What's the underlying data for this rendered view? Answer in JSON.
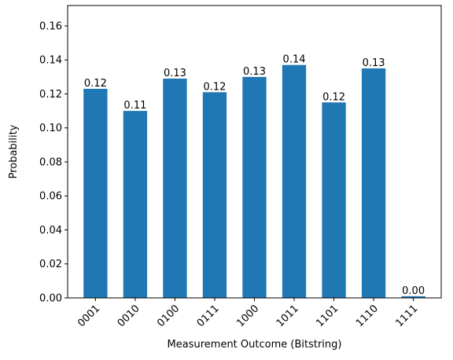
{
  "chart_data": {
    "type": "bar",
    "title": "",
    "xlabel": "Measurement Outcome (Bitstring)",
    "ylabel": "Probability",
    "categories": [
      "0001",
      "0010",
      "0100",
      "0111",
      "1000",
      "1011",
      "1101",
      "1110",
      "1111"
    ],
    "values": [
      0.123,
      0.11,
      0.129,
      0.121,
      0.13,
      0.137,
      0.115,
      0.135,
      0.001
    ],
    "value_labels": [
      "0.12",
      "0.11",
      "0.13",
      "0.12",
      "0.13",
      "0.14",
      "0.12",
      "0.13",
      "0.00"
    ],
    "ylim": [
      0,
      0.172
    ],
    "yticks": [
      0,
      0.02,
      0.04,
      0.06,
      0.08,
      0.1,
      0.12,
      0.14,
      0.16
    ],
    "ytick_labels": [
      "0.00",
      "0.02",
      "0.04",
      "0.06",
      "0.08",
      "0.10",
      "0.12",
      "0.14",
      "0.16"
    ],
    "bar_color": "#1f77b4",
    "grid": false,
    "legend": "none"
  }
}
